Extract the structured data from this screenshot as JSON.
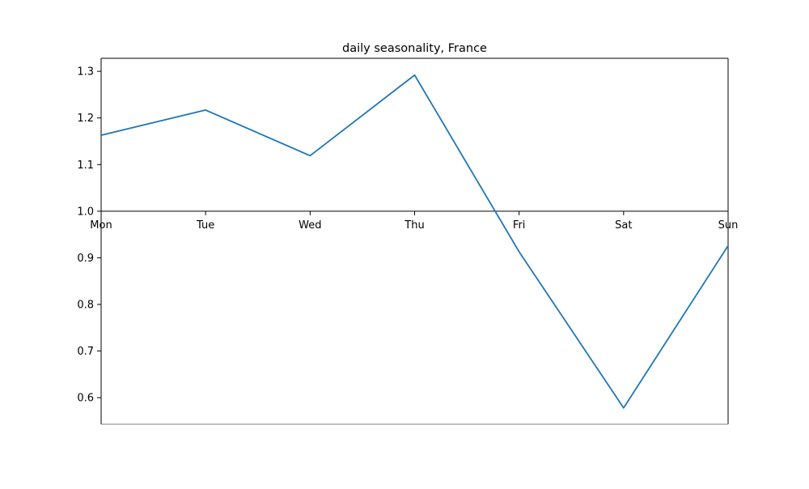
{
  "chart_data": {
    "type": "line",
    "title": "daily seasonality, France",
    "xlabel": "",
    "ylabel": "",
    "categories": [
      "Mon",
      "Tue",
      "Wed",
      "Thu",
      "Fri",
      "Sat",
      "Sun"
    ],
    "series": [
      {
        "values": [
          1.163,
          1.217,
          1.119,
          1.292,
          0.913,
          0.578,
          0.926
        ],
        "color": "#1f77b4"
      }
    ],
    "ylim": [
      0.543,
      1.328
    ],
    "yticks": [
      0.6,
      0.7,
      0.8,
      0.9,
      1.0,
      1.1,
      1.2,
      1.3
    ],
    "ytick_labels": [
      "0.6",
      "0.7",
      "0.8",
      "0.9",
      "1.0",
      "1.1",
      "1.2",
      "1.3"
    ],
    "x_axis_at_y": 1.0,
    "grid": false,
    "legend": "none"
  }
}
